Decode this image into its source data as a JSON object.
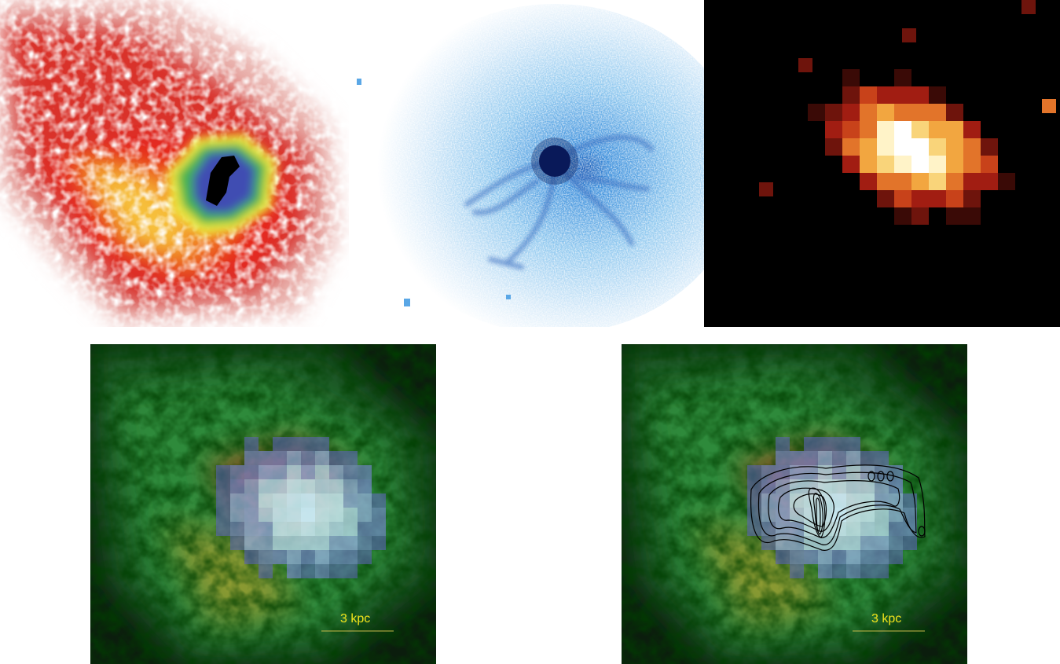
{
  "panels": [
    {
      "id": "red-colormap-image"
    },
    {
      "id": "blue-optical-image"
    },
    {
      "id": "heat-colormap-image"
    },
    {
      "id": "rgb-composite-image",
      "scale_bar": {
        "label": "3 kpc"
      }
    },
    {
      "id": "rgb-composite-contour-image",
      "scale_bar": {
        "label": "3 kpc"
      }
    }
  ],
  "colors": {
    "scale_bar_text": "#f2e41a",
    "scale_bar_line": "#c8b84a",
    "contour": "#000000"
  }
}
